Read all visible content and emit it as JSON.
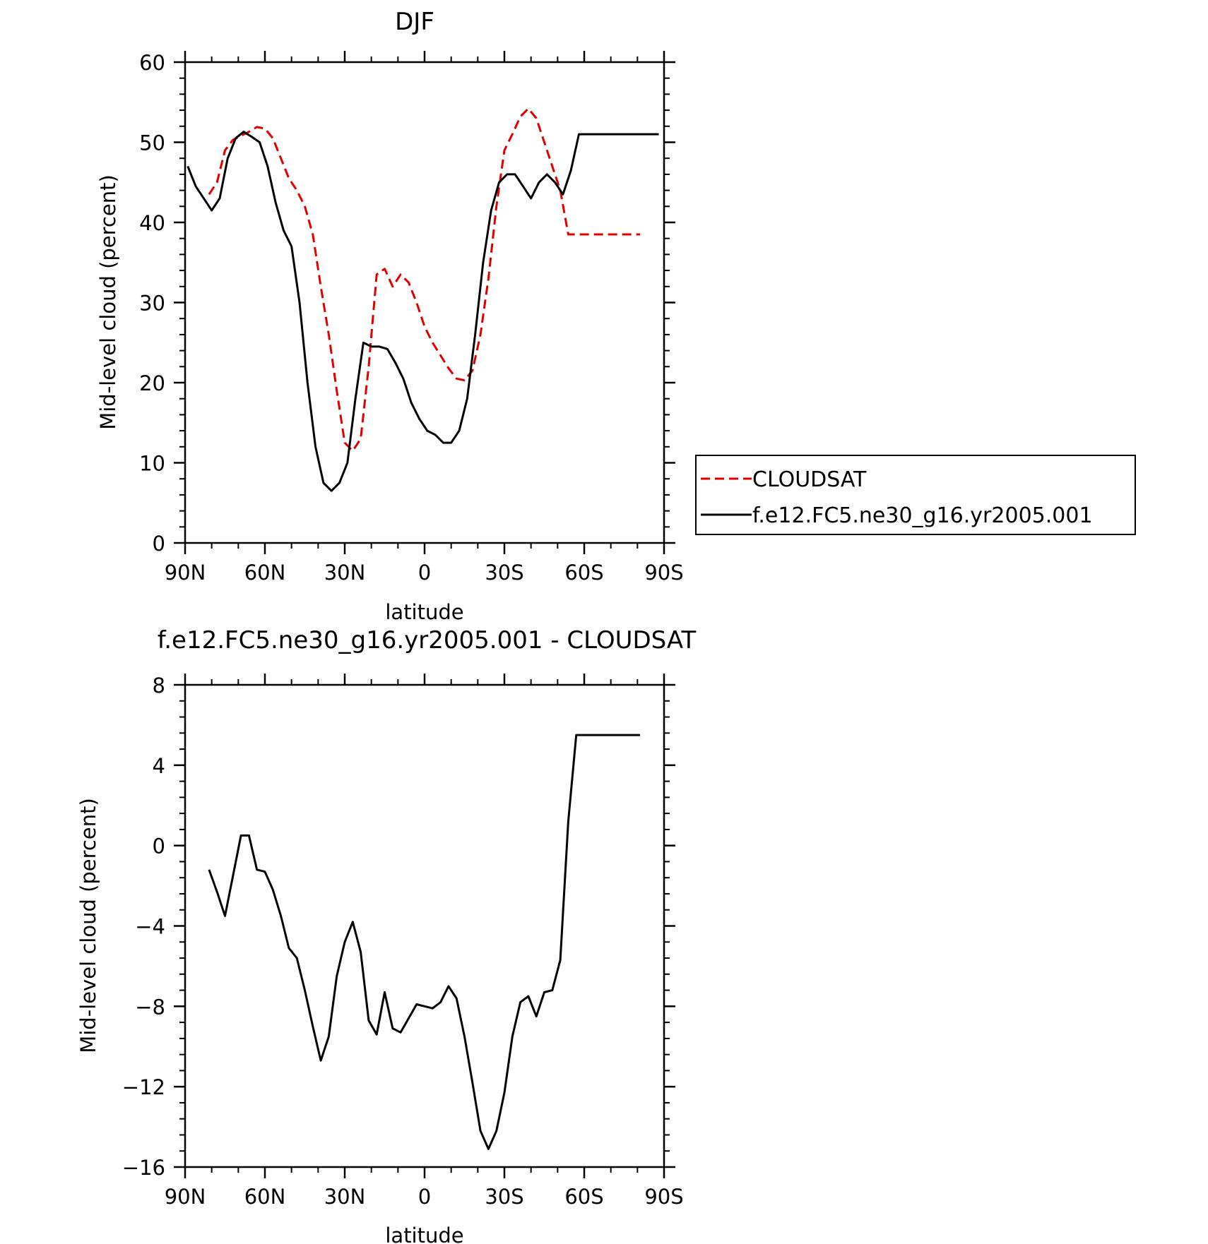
{
  "chart_data": [
    {
      "type": "line",
      "title": "DJF",
      "xlabel": "latitude",
      "ylabel": "Mid-level cloud (percent)",
      "xlim": [
        90,
        -90
      ],
      "ylim": [
        0,
        60
      ],
      "x_tick_values": [
        90,
        60,
        30,
        0,
        -30,
        -60,
        -90
      ],
      "x_tick_labels": [
        "90N",
        "60N",
        "30N",
        "0",
        "30S",
        "60S",
        "90S"
      ],
      "y_tick_labels": [
        "0",
        "10",
        "20",
        "30",
        "40",
        "50",
        "60"
      ],
      "legend": {
        "position": "right"
      },
      "series": [
        {
          "name": "CLOUDSAT",
          "color": "#e00000",
          "dash": "dashed",
          "x": [
            81,
            78,
            75,
            72,
            69,
            66,
            63,
            60,
            57,
            54,
            51,
            48,
            45,
            42,
            39,
            36,
            33,
            30,
            27,
            24,
            21,
            18,
            15,
            12,
            9,
            6,
            3,
            0,
            -3,
            -6,
            -9,
            -12,
            -15,
            -18,
            -21,
            -24,
            -27,
            -30,
            -33,
            -36,
            -39,
            -42,
            -45,
            -48,
            -51,
            -54,
            -57,
            -60,
            -63,
            -66,
            -69,
            -72,
            -75,
            -78,
            -81
          ],
          "values": [
            43.5,
            45,
            49,
            50.3,
            50.8,
            51.3,
            51.9,
            51.7,
            50.5,
            48,
            45.5,
            44,
            42,
            38.5,
            32,
            26,
            19,
            12.5,
            11.5,
            13,
            22,
            33.5,
            34.2,
            32,
            33.5,
            32.5,
            30,
            27,
            25,
            23.4,
            21.8,
            20.5,
            20.3,
            21.5,
            26,
            33,
            42,
            49,
            51,
            53.2,
            54.2,
            53,
            50,
            47,
            44,
            38.5,
            38.5,
            38.5,
            38.5,
            38.5,
            38.5,
            38.5,
            38.5,
            38.5,
            38.5
          ]
        },
        {
          "name": "f.e12.FC5.ne30_g16.yr2005.001",
          "color": "#000000",
          "dash": "solid",
          "x": [
            89,
            86,
            83,
            80,
            77,
            74,
            71,
            68,
            65,
            62,
            59,
            56,
            53,
            50,
            47,
            44,
            41,
            38,
            35,
            32,
            29,
            26,
            23,
            20,
            17,
            14,
            11,
            8,
            5,
            2,
            -1,
            -4,
            -7,
            -10,
            -13,
            -16,
            -19,
            -22,
            -25,
            -28,
            -31,
            -34,
            -37,
            -40,
            -43,
            -46,
            -49,
            -52,
            -55,
            -58,
            -61,
            -64,
            -67,
            -70,
            -73,
            -76,
            -79,
            -82,
            -85,
            -88
          ],
          "values": [
            47,
            44.5,
            43,
            41.5,
            43,
            48,
            50.5,
            51.3,
            50.7,
            50,
            47,
            42.5,
            39,
            37,
            30,
            20,
            12,
            7.5,
            6.5,
            7.5,
            10,
            18,
            25,
            24.5,
            24.5,
            24.2,
            22.5,
            20.5,
            17.5,
            15.5,
            14,
            13.5,
            12.5,
            12.5,
            14,
            18,
            26,
            35,
            41.5,
            45,
            46,
            46,
            44.5,
            43,
            45,
            46,
            45,
            43.5,
            46.5,
            51,
            51,
            51,
            51,
            51,
            51,
            51,
            51,
            51,
            51,
            51
          ]
        }
      ]
    },
    {
      "type": "line",
      "title": "f.e12.FC5.ne30_g16.yr2005.001 - CLOUDSAT",
      "xlabel": "latitude",
      "ylabel": "Mid-level cloud (percent)",
      "xlim": [
        90,
        -90
      ],
      "ylim": [
        -16,
        8
      ],
      "x_tick_values": [
        90,
        60,
        30,
        0,
        -30,
        -60,
        -90
      ],
      "x_tick_labels": [
        "90N",
        "60N",
        "30N",
        "0",
        "30S",
        "60S",
        "90S"
      ],
      "y_tick_labels": [
        "−16",
        "−12",
        "−8",
        "−4",
        "0",
        "4",
        "8"
      ],
      "series": [
        {
          "color": "#000000",
          "dash": "solid",
          "x": [
            81,
            78,
            75,
            72,
            69,
            66,
            63,
            60,
            57,
            54,
            51,
            48,
            45,
            42,
            39,
            36,
            33,
            30,
            27,
            24,
            21,
            18,
            15,
            12,
            9,
            6,
            3,
            0,
            -3,
            -6,
            -9,
            -12,
            -15,
            -18,
            -21,
            -24,
            -27,
            -30,
            -33,
            -36,
            -39,
            -42,
            -45,
            -48,
            -51,
            -54,
            -57,
            -60,
            -63,
            -66,
            -69,
            -72,
            -75,
            -78,
            -81
          ],
          "values": [
            -1.2,
            -2.3,
            -3.5,
            -1.5,
            0.5,
            0.5,
            -1.2,
            -1.3,
            -2.2,
            -3.5,
            -5.1,
            -5.6,
            -7.2,
            -9,
            -10.7,
            -9.5,
            -6.5,
            -4.8,
            -3.8,
            -5.3,
            -8.7,
            -9.4,
            -7.3,
            -9.1,
            -9.3,
            -8.6,
            -7.9,
            -8.0,
            -8.1,
            -7.8,
            -7.0,
            -7.6,
            -9.5,
            -11.8,
            -14.2,
            -15.1,
            -14.2,
            -12.3,
            -9.5,
            -7.8,
            -7.5,
            -8.5,
            -7.3,
            -7.2,
            -5.7,
            1.2,
            5.5,
            5.5,
            5.5,
            5.5,
            5.5,
            5.5,
            5.5,
            5.5,
            5.5
          ]
        }
      ]
    }
  ]
}
